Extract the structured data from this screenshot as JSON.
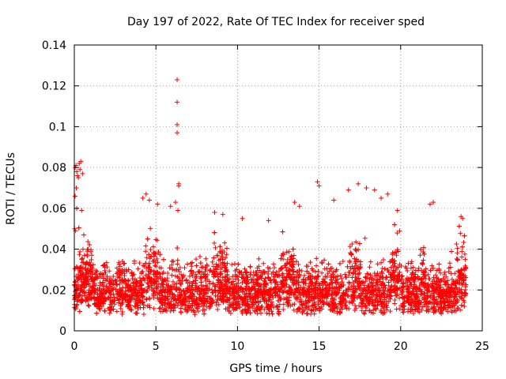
{
  "chart_data": {
    "type": "scatter",
    "title": "Day 197 of 2022, Rate Of TEC Index for receiver sped",
    "xlabel": "GPS time / hours",
    "ylabel": "ROTI / TECUs",
    "xlim": [
      0,
      25
    ],
    "ylim": [
      0,
      0.14
    ],
    "xticks": [
      0,
      5,
      10,
      15,
      20,
      25
    ],
    "xtick_labels": [
      "0",
      "5",
      "10",
      "15",
      "20",
      "25"
    ],
    "yticks": [
      0,
      0.02,
      0.04,
      0.06,
      0.08,
      0.1,
      0.12,
      0.14
    ],
    "ytick_labels": [
      "0",
      "0.02",
      "0.04",
      "0.06",
      "0.08",
      "0.1",
      "0.12",
      "0.14"
    ],
    "grid": true,
    "marker": "+",
    "colors": {
      "series": "#ff0000",
      "grid": "#a0a0a0",
      "axes": "#000000"
    },
    "series": [
      {
        "name": "ROTI",
        "note": "dense cloud of ~thousands of points between 0.005 and 0.035 TECU across 0–24 h; representative sample plus notable outliers",
        "x": [
          0.05,
          0.1,
          0.15,
          0.2,
          0.25,
          0.3,
          0.35,
          0.4,
          0.5,
          0.05,
          0.15,
          0.45,
          0.02,
          0.08,
          0.12,
          6.3,
          6.3,
          6.3,
          6.3,
          6.4,
          6.4,
          6.2,
          6.35,
          4.2,
          4.4,
          4.6,
          5.1,
          5.9,
          8.6,
          9.1,
          10.3,
          11.9,
          13.5,
          13.8,
          14.9,
          15.0,
          15.9,
          16.8,
          17.4,
          17.9,
          18.4,
          18.8,
          19.2,
          19.8,
          21.8,
          22.0,
          23.7,
          23.8
        ],
        "y": [
          0.08,
          0.081,
          0.078,
          0.076,
          0.075,
          0.082,
          0.079,
          0.083,
          0.077,
          0.066,
          0.06,
          0.059,
          0.05,
          0.049,
          0.07,
          0.123,
          0.112,
          0.101,
          0.097,
          0.071,
          0.072,
          0.063,
          0.059,
          0.065,
          0.067,
          0.064,
          0.062,
          0.061,
          0.058,
          0.057,
          0.055,
          0.054,
          0.063,
          0.061,
          0.073,
          0.071,
          0.064,
          0.069,
          0.072,
          0.07,
          0.069,
          0.065,
          0.067,
          0.059,
          0.062,
          0.063,
          0.056,
          0.055
        ]
      }
    ]
  }
}
